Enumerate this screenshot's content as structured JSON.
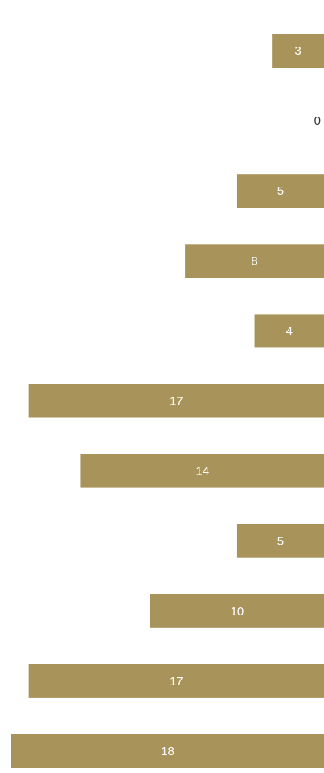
{
  "chart_data": {
    "type": "bar",
    "orientation": "horizontal",
    "values": [
      3,
      0,
      5,
      8,
      4,
      17,
      14,
      5,
      10,
      17,
      18
    ],
    "data_labels": [
      "3",
      "0",
      "5",
      "8",
      "4",
      "17",
      "14",
      "5",
      "10",
      "17",
      "18"
    ],
    "xlim": [
      0,
      18
    ],
    "grid": false,
    "colors": {
      "bar": "#a8935a",
      "label_inside": "#ffffff",
      "label_outside": "#333333"
    }
  }
}
